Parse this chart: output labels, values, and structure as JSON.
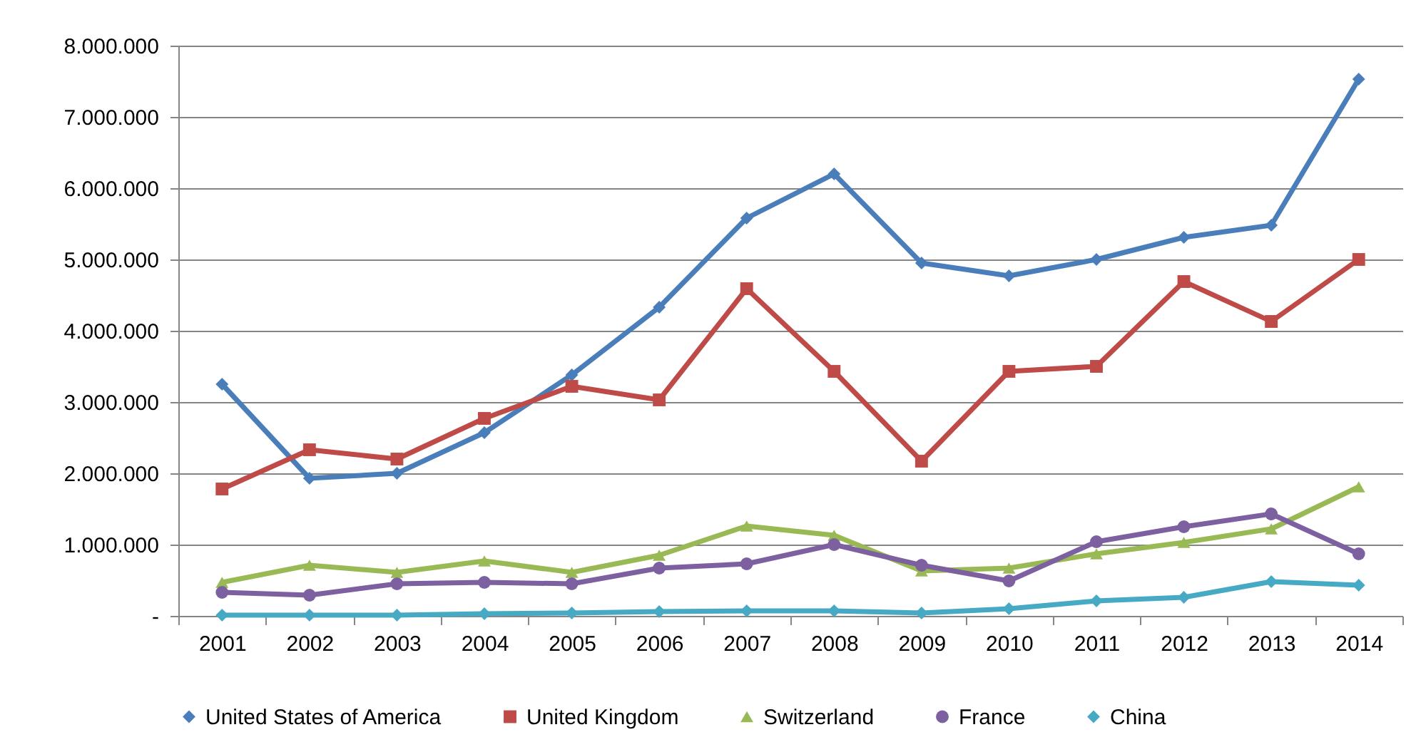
{
  "chart_data": {
    "type": "line",
    "categories": [
      "2001",
      "2002",
      "2003",
      "2004",
      "2005",
      "2006",
      "2007",
      "2008",
      "2009",
      "2010",
      "2011",
      "2012",
      "2013",
      "2014"
    ],
    "series": [
      {
        "name": "United States of America",
        "color": "#4a7ebb",
        "marker": "diamond",
        "values": [
          3250000,
          1930000,
          2000000,
          2570000,
          3380000,
          4330000,
          5580000,
          6200000,
          4950000,
          4770000,
          5000000,
          5310000,
          5480000,
          7530000
        ]
      },
      {
        "name": "United Kingdom",
        "color": "#be4b48",
        "marker": "square",
        "values": [
          1780000,
          2330000,
          2200000,
          2770000,
          3220000,
          3030000,
          4590000,
          3430000,
          2170000,
          3430000,
          3500000,
          4690000,
          4130000,
          5000000
        ]
      },
      {
        "name": "Switzerland",
        "color": "#98b954",
        "marker": "triangle",
        "values": [
          470000,
          710000,
          610000,
          770000,
          610000,
          850000,
          1260000,
          1130000,
          630000,
          670000,
          870000,
          1030000,
          1220000,
          1810000
        ]
      },
      {
        "name": "France",
        "color": "#7d60a0",
        "marker": "circle",
        "values": [
          330000,
          290000,
          450000,
          470000,
          450000,
          670000,
          730000,
          1000000,
          710000,
          490000,
          1040000,
          1250000,
          1430000,
          870000
        ]
      },
      {
        "name": "China",
        "color": "#46aac5",
        "marker": "diamond",
        "values": [
          10000,
          10000,
          10000,
          30000,
          40000,
          60000,
          70000,
          70000,
          40000,
          100000,
          210000,
          260000,
          480000,
          430000
        ]
      }
    ],
    "ylim": [
      0,
      8000000
    ],
    "yticks": [
      {
        "value": 0,
        "label": "-"
      },
      {
        "value": 1000000,
        "label": "1.000.000"
      },
      {
        "value": 2000000,
        "label": "2.000.000"
      },
      {
        "value": 3000000,
        "label": "3.000.000"
      },
      {
        "value": 4000000,
        "label": "4.000.000"
      },
      {
        "value": 5000000,
        "label": "5.000.000"
      },
      {
        "value": 6000000,
        "label": "6.000.000"
      },
      {
        "value": 7000000,
        "label": "7.000.000"
      },
      {
        "value": 8000000,
        "label": "8.000.000"
      }
    ],
    "grid": "y",
    "legend": "bottom",
    "line_style": "solid"
  }
}
